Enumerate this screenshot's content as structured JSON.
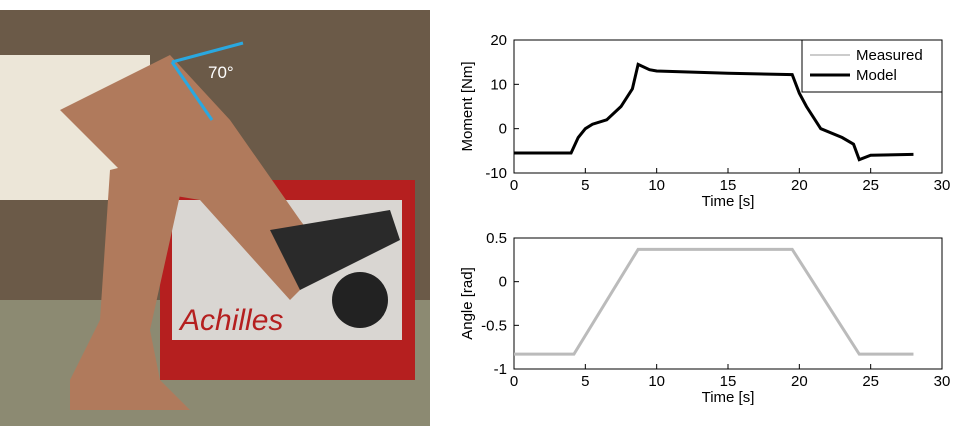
{
  "photo": {
    "angle_label": "70°",
    "brand": "Achilles"
  },
  "chart_data": [
    {
      "type": "line",
      "xlabel": "Time [s]",
      "ylabel": "Moment [Nm]",
      "x": [
        0,
        4,
        4.5,
        5,
        5.5,
        6.5,
        7.5,
        8.3,
        8.7,
        9.5,
        10,
        15,
        19.5,
        20,
        20.5,
        21.5,
        23,
        23.8,
        24.2,
        25,
        28
      ],
      "series": [
        {
          "name": "Measured",
          "color": "#bbbbbb",
          "values": [
            -5.5,
            -5.5,
            -2,
            0,
            1,
            2,
            5,
            9,
            14.5,
            13.3,
            13,
            12.5,
            12.2,
            8,
            5,
            0,
            -2,
            -3.5,
            -7,
            -6,
            -5.8
          ]
        },
        {
          "name": "Model",
          "color": "#000000",
          "values": [
            -5.5,
            -5.5,
            -2,
            0,
            1,
            2,
            5,
            9,
            14.5,
            13.3,
            13,
            12.5,
            12.2,
            8,
            5,
            0,
            -2,
            -3.5,
            -7,
            -6,
            -5.8
          ]
        }
      ],
      "xlim": [
        0,
        30
      ],
      "xticks": [
        0,
        5,
        10,
        15,
        20,
        25,
        30
      ],
      "ylim": [
        -10,
        20
      ],
      "yticks": [
        -10,
        0,
        10,
        20
      ],
      "legend": "upper-right"
    },
    {
      "type": "line",
      "xlabel": "Time [s]",
      "ylabel": "Angle [rad]",
      "x": [
        0,
        4.2,
        8.7,
        19.5,
        24.2,
        28
      ],
      "values": [
        -0.83,
        -0.83,
        0.37,
        0.37,
        -0.83,
        -0.83
      ],
      "color": "#bbbbbb",
      "xlim": [
        0,
        30
      ],
      "xticks": [
        0,
        5,
        10,
        15,
        20,
        25,
        30
      ],
      "ylim": [
        -1,
        0.5
      ],
      "yticks": [
        -1,
        -0.5,
        0,
        0.5
      ]
    }
  ]
}
